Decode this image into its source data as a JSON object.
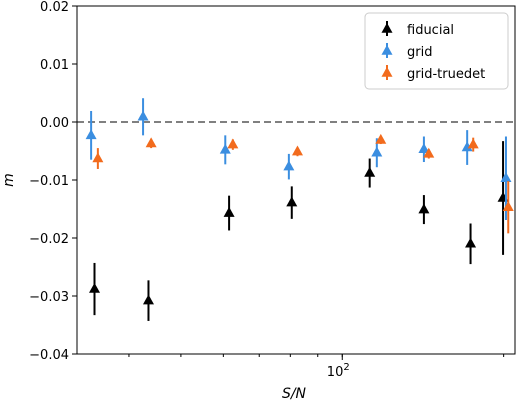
{
  "chart_data": {
    "type": "scatter",
    "xlabel": "S/N",
    "ylabel": "m",
    "xscale": "log",
    "xlim": [
      32,
      210
    ],
    "ylim": [
      -0.04,
      0.02
    ],
    "xticks": [
      {
        "value": 100,
        "base": "10",
        "exp": "2"
      }
    ],
    "yticks": [
      {
        "value": 0.02,
        "label": "0.02"
      },
      {
        "value": 0.01,
        "label": "0.01"
      },
      {
        "value": 0.0,
        "label": "0.00"
      },
      {
        "value": -0.01,
        "label": "−0.01"
      },
      {
        "value": -0.02,
        "label": "−0.02"
      },
      {
        "value": -0.03,
        "label": "−0.03"
      },
      {
        "value": -0.04,
        "label": "−0.04"
      }
    ],
    "reference_line": {
      "y": 0,
      "style": "dashed",
      "color": "#808080"
    },
    "legend_position": "top-right",
    "series": [
      {
        "name": "fiducial",
        "color": "#000000",
        "marker": "triangle",
        "points": [
          {
            "x": 34.5,
            "y": -0.0288,
            "err": 0.0045
          },
          {
            "x": 43.5,
            "y": -0.0308,
            "err": 0.0035
          },
          {
            "x": 61.5,
            "y": -0.0157,
            "err": 0.003
          },
          {
            "x": 80.5,
            "y": -0.0139,
            "err": 0.0028
          },
          {
            "x": 112.5,
            "y": -0.0088,
            "err": 0.0025
          },
          {
            "x": 142,
            "y": -0.0151,
            "err": 0.0025
          },
          {
            "x": 173.5,
            "y": -0.021,
            "err": 0.0035
          },
          {
            "x": 199.5,
            "y": -0.0131,
            "err": 0.0098
          }
        ]
      },
      {
        "name": "grid",
        "color": "#3b8ee0",
        "marker": "triangle",
        "points": [
          {
            "x": 34,
            "y": -0.0023,
            "err": 0.0042
          },
          {
            "x": 42.5,
            "y": 0.0009,
            "err": 0.0032
          },
          {
            "x": 60.5,
            "y": -0.0048,
            "err": 0.0025
          },
          {
            "x": 79.5,
            "y": -0.0077,
            "err": 0.0022
          },
          {
            "x": 116,
            "y": -0.0053,
            "err": 0.0025
          },
          {
            "x": 142,
            "y": -0.0047,
            "err": 0.0022
          },
          {
            "x": 171,
            "y": -0.0044,
            "err": 0.003
          },
          {
            "x": 202,
            "y": -0.0097,
            "err": 0.0072
          }
        ]
      },
      {
        "name": "grid-truedet",
        "color": "#f26b1d",
        "marker": "triangle",
        "points": [
          {
            "x": 35,
            "y": -0.0063,
            "err": 0.0018
          },
          {
            "x": 44,
            "y": -0.0037,
            "err": 0.0008
          },
          {
            "x": 62.5,
            "y": -0.0039,
            "err": 0.0009
          },
          {
            "x": 82.5,
            "y": -0.0051,
            "err": 0.0008
          },
          {
            "x": 118,
            "y": -0.0031,
            "err": 0.0007
          },
          {
            "x": 145,
            "y": -0.0055,
            "err": 0.0008
          },
          {
            "x": 175.5,
            "y": -0.0039,
            "err": 0.0012
          },
          {
            "x": 204,
            "y": -0.0147,
            "err": 0.0045
          }
        ]
      }
    ]
  }
}
